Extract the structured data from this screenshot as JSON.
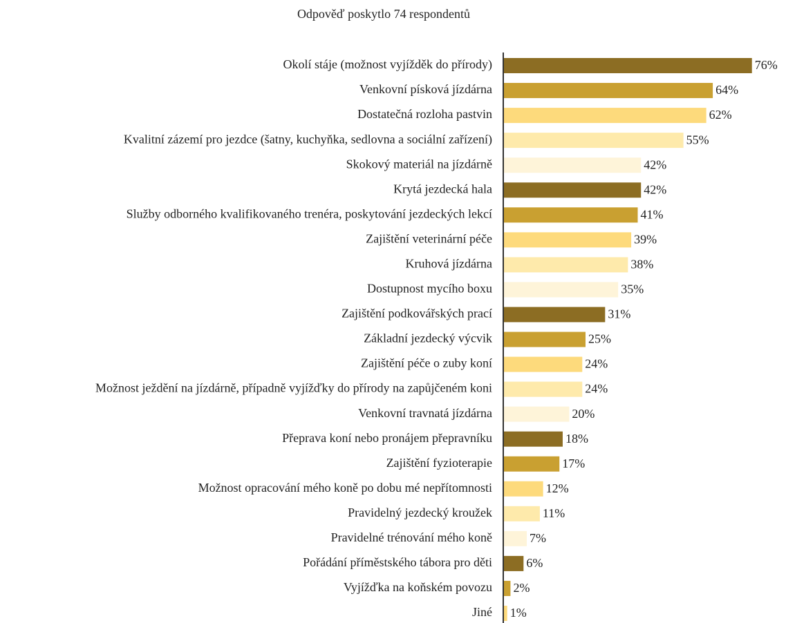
{
  "chart_data": {
    "type": "barh",
    "title": "Odpověď poskytlo 74 respondentů",
    "categories": [
      "Okolí stáje (možnost vyjížděk do přírody)",
      "Venkovní písková jízdárna",
      "Dostatečná rozloha pastvin",
      "Kvalitní zázemí pro jezdce (šatny, kuchyňka, sedlovna a sociální zařízení)",
      "Skokový materiál na jízdárně",
      "Krytá jezdecká hala",
      "Služby odborného kvalifikovaného trenéra, poskytování jezdeckých lekcí",
      "Zajištění veterinární péče",
      "Kruhová jízdárna",
      "Dostupnost mycího boxu",
      "Zajištění podkovářských prací",
      "Základní jezdecký výcvik",
      "Zajištění péče o zuby koní",
      "Možnost ježdění na jízdárně, případně vyjížďky do přírody na zapůjčeném koni",
      "Venkovní travnatá jízdárna",
      "Přeprava koní nebo pronájem přepravníku",
      "Zajištění fyzioterapie",
      "Možnost opracování mého koně po dobu mé nepřítomnosti",
      "Pravidelný jezdecký kroužek",
      "Pravidelné trénování mého koně",
      "Pořádání příměstského tábora pro děti",
      "Vyjížďka na koňském povozu",
      "Jiné"
    ],
    "values": [
      76,
      64,
      62,
      55,
      42,
      42,
      41,
      39,
      38,
      35,
      31,
      25,
      24,
      24,
      20,
      18,
      17,
      12,
      11,
      7,
      6,
      2,
      1
    ],
    "value_labels": [
      "76%",
      "64%",
      "62%",
      "55%",
      "42%",
      "42%",
      "41%",
      "39%",
      "38%",
      "35%",
      "31%",
      "25%",
      "24%",
      "24%",
      "20%",
      "18%",
      "17%",
      "12%",
      "11%",
      "7%",
      "6%",
      "2%",
      "1%"
    ],
    "colors": [
      "#8c6d23",
      "#c9a031",
      "#fdda7c",
      "#feeaab",
      "#fef4d9"
    ]
  }
}
